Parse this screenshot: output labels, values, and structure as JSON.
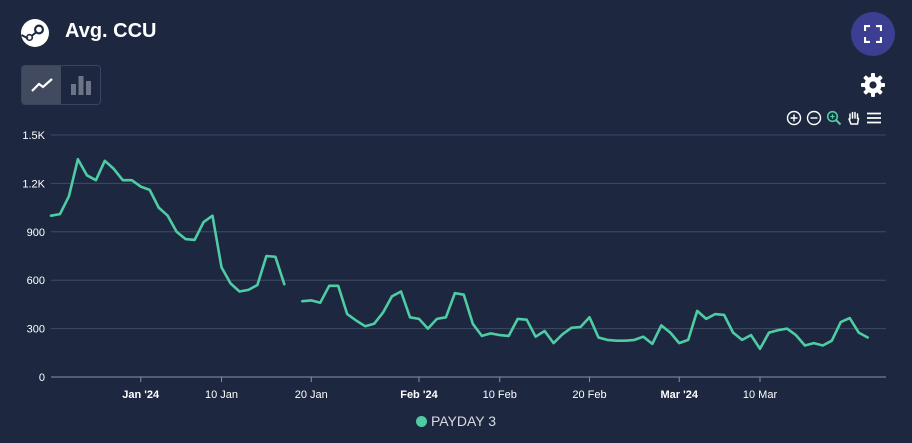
{
  "header": {
    "title": "Avg. CCU"
  },
  "icons": {
    "logo": "steam-logo-icon",
    "fullscreen": "fullscreen-icon",
    "line": "line-chart-icon",
    "bar": "bar-chart-icon",
    "settings": "gear-icon",
    "zoom_in": "zoom-in-icon",
    "zoom_out": "zoom-out-icon",
    "zoom_reset": "magnifier-icon",
    "pan": "hand-icon",
    "menu": "menu-icon"
  },
  "colors": {
    "background": "#1e2740",
    "series": "#4ecca3",
    "grid": "#3f4a63",
    "fullscreen_button": "#3c3f91"
  },
  "chart_data": {
    "type": "line",
    "title": "Avg. CCU",
    "xlabel": "",
    "ylabel": "",
    "ylim": [
      0,
      1500
    ],
    "yticks": [
      0,
      300,
      600,
      900,
      1200,
      1500
    ],
    "ytick_labels": [
      "0",
      "300",
      "600",
      "900",
      "1.2K",
      "1.5K"
    ],
    "xlim": [
      "2023-12-22",
      "2024-03-20"
    ],
    "grid": true,
    "legend_position": "bottom-center",
    "xticks": [
      {
        "date": "2024-01-01",
        "label": "Jan '24",
        "bold": true
      },
      {
        "date": "2024-01-10",
        "label": "10 Jan",
        "bold": false
      },
      {
        "date": "2024-01-20",
        "label": "20 Jan",
        "bold": false
      },
      {
        "date": "2024-02-01",
        "label": "Feb '24",
        "bold": true
      },
      {
        "date": "2024-02-10",
        "label": "10 Feb",
        "bold": false
      },
      {
        "date": "2024-02-20",
        "label": "20 Feb",
        "bold": false
      },
      {
        "date": "2024-03-01",
        "label": "Mar '24",
        "bold": true
      },
      {
        "date": "2024-03-10",
        "label": "10 Mar",
        "bold": false
      }
    ],
    "series": [
      {
        "name": "PAYDAY 3",
        "color": "#4ecca3",
        "points": [
          [
            "2023-12-22",
            1000
          ],
          [
            "2023-12-23",
            1010
          ],
          [
            "2023-12-24",
            1120
          ],
          [
            "2023-12-25",
            1350
          ],
          [
            "2023-12-26",
            1250
          ],
          [
            "2023-12-27",
            1220
          ],
          [
            "2023-12-28",
            1340
          ],
          [
            "2023-12-29",
            1290
          ],
          [
            "2023-12-30",
            1220
          ],
          [
            "2023-12-31",
            1220
          ],
          [
            "2024-01-01",
            1180
          ],
          [
            "2024-01-02",
            1160
          ],
          [
            "2024-01-03",
            1050
          ],
          [
            "2024-01-04",
            1000
          ],
          [
            "2024-01-05",
            900
          ],
          [
            "2024-01-06",
            855
          ],
          [
            "2024-01-07",
            850
          ],
          [
            "2024-01-08",
            960
          ],
          [
            "2024-01-09",
            1000
          ],
          [
            "2024-01-10",
            680
          ],
          [
            "2024-01-11",
            580
          ],
          [
            "2024-01-12",
            530
          ],
          [
            "2024-01-13",
            540
          ],
          [
            "2024-01-14",
            570
          ],
          [
            "2024-01-15",
            750
          ],
          [
            "2024-01-16",
            745
          ],
          [
            "2024-01-17",
            575
          ],
          [
            "2024-01-18",
            null
          ],
          [
            "2024-01-19",
            470
          ],
          [
            "2024-01-20",
            475
          ],
          [
            "2024-01-21",
            460
          ],
          [
            "2024-01-22",
            565
          ],
          [
            "2024-01-23",
            565
          ],
          [
            "2024-01-24",
            390
          ],
          [
            "2024-01-25",
            350
          ],
          [
            "2024-01-26",
            315
          ],
          [
            "2024-01-27",
            330
          ],
          [
            "2024-01-28",
            400
          ],
          [
            "2024-01-29",
            500
          ],
          [
            "2024-01-30",
            530
          ],
          [
            "2024-01-31",
            370
          ],
          [
            "2024-02-01",
            360
          ],
          [
            "2024-02-02",
            300
          ],
          [
            "2024-02-03",
            360
          ],
          [
            "2024-02-04",
            370
          ],
          [
            "2024-02-05",
            520
          ],
          [
            "2024-02-06",
            510
          ],
          [
            "2024-02-07",
            330
          ],
          [
            "2024-02-08",
            255
          ],
          [
            "2024-02-09",
            270
          ],
          [
            "2024-02-10",
            260
          ],
          [
            "2024-02-11",
            255
          ],
          [
            "2024-02-12",
            360
          ],
          [
            "2024-02-13",
            355
          ],
          [
            "2024-02-14",
            250
          ],
          [
            "2024-02-15",
            285
          ],
          [
            "2024-02-16",
            210
          ],
          [
            "2024-02-17",
            265
          ],
          [
            "2024-02-18",
            305
          ],
          [
            "2024-02-19",
            310
          ],
          [
            "2024-02-20",
            370
          ],
          [
            "2024-02-21",
            245
          ],
          [
            "2024-02-22",
            230
          ],
          [
            "2024-02-23",
            225
          ],
          [
            "2024-02-24",
            225
          ],
          [
            "2024-02-25",
            230
          ],
          [
            "2024-02-26",
            250
          ],
          [
            "2024-02-27",
            205
          ],
          [
            "2024-02-28",
            320
          ],
          [
            "2024-02-29",
            275
          ],
          [
            "2024-03-01",
            210
          ],
          [
            "2024-03-02",
            230
          ],
          [
            "2024-03-03",
            410
          ],
          [
            "2024-03-04",
            360
          ],
          [
            "2024-03-05",
            390
          ],
          [
            "2024-03-06",
            385
          ],
          [
            "2024-03-07",
            275
          ],
          [
            "2024-03-08",
            230
          ],
          [
            "2024-03-09",
            260
          ],
          [
            "2024-03-10",
            175
          ],
          [
            "2024-03-11",
            275
          ],
          [
            "2024-03-12",
            290
          ],
          [
            "2024-03-13",
            300
          ],
          [
            "2024-03-14",
            260
          ],
          [
            "2024-03-15",
            195
          ],
          [
            "2024-03-16",
            210
          ],
          [
            "2024-03-17",
            195
          ],
          [
            "2024-03-18",
            225
          ],
          [
            "2024-03-19",
            340
          ],
          [
            "2024-03-20",
            365
          ],
          [
            "2024-03-21",
            275
          ],
          [
            "2024-03-22",
            245
          ]
        ]
      }
    ]
  }
}
